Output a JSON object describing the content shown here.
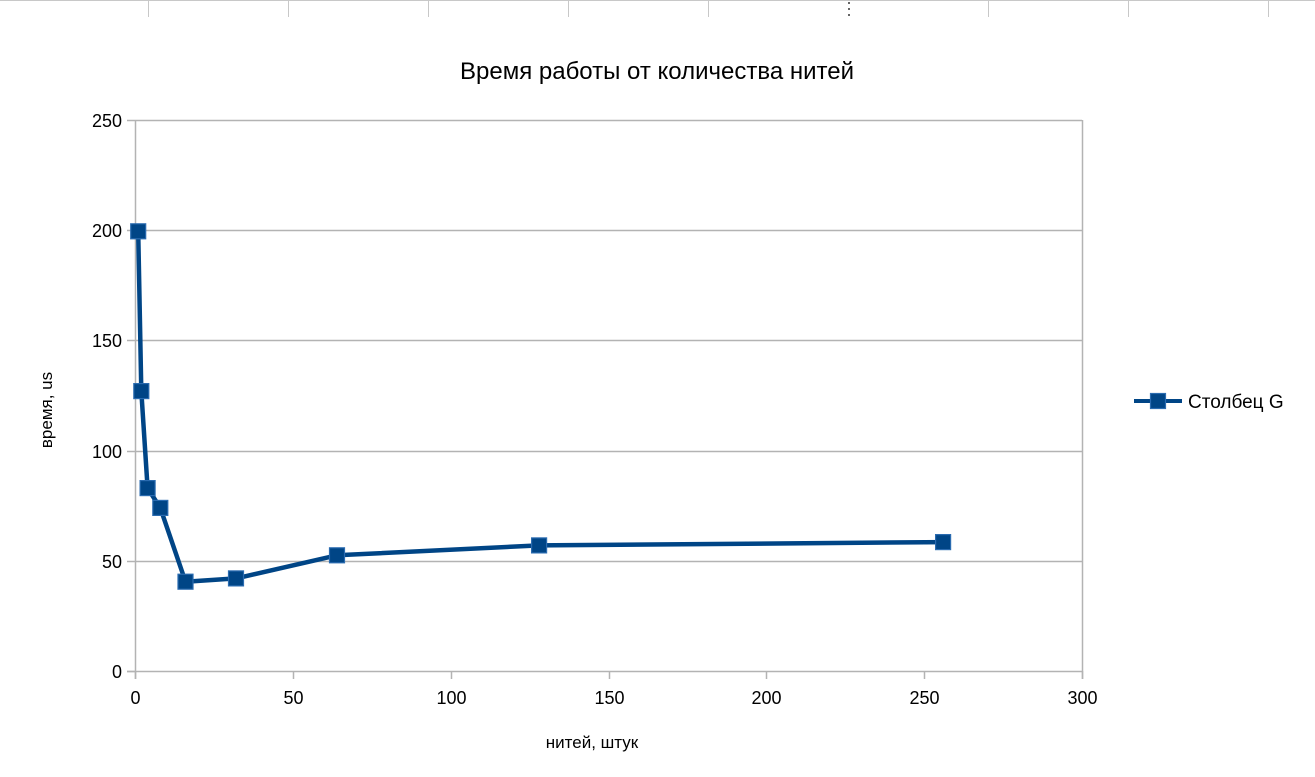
{
  "chart_data": {
    "type": "line",
    "title": "Время работы от количества нитей",
    "xlabel": "нитей, штук",
    "ylabel": "время, us",
    "xlim": [
      0,
      300
    ],
    "ylim": [
      0,
      250
    ],
    "x_ticks": [
      0,
      50,
      100,
      150,
      200,
      250,
      300
    ],
    "y_ticks": [
      0,
      50,
      100,
      150,
      200,
      250
    ],
    "grid": "horizontal",
    "legend_position": "right",
    "series": [
      {
        "name": "Столбец G",
        "color": "#004586",
        "marker": "square",
        "x": [
          1,
          2,
          4,
          8,
          16,
          32,
          64,
          128,
          256
        ],
        "y": [
          199.5,
          127,
          83,
          74,
          40.5,
          42,
          52.5,
          57,
          58.5
        ]
      }
    ]
  }
}
